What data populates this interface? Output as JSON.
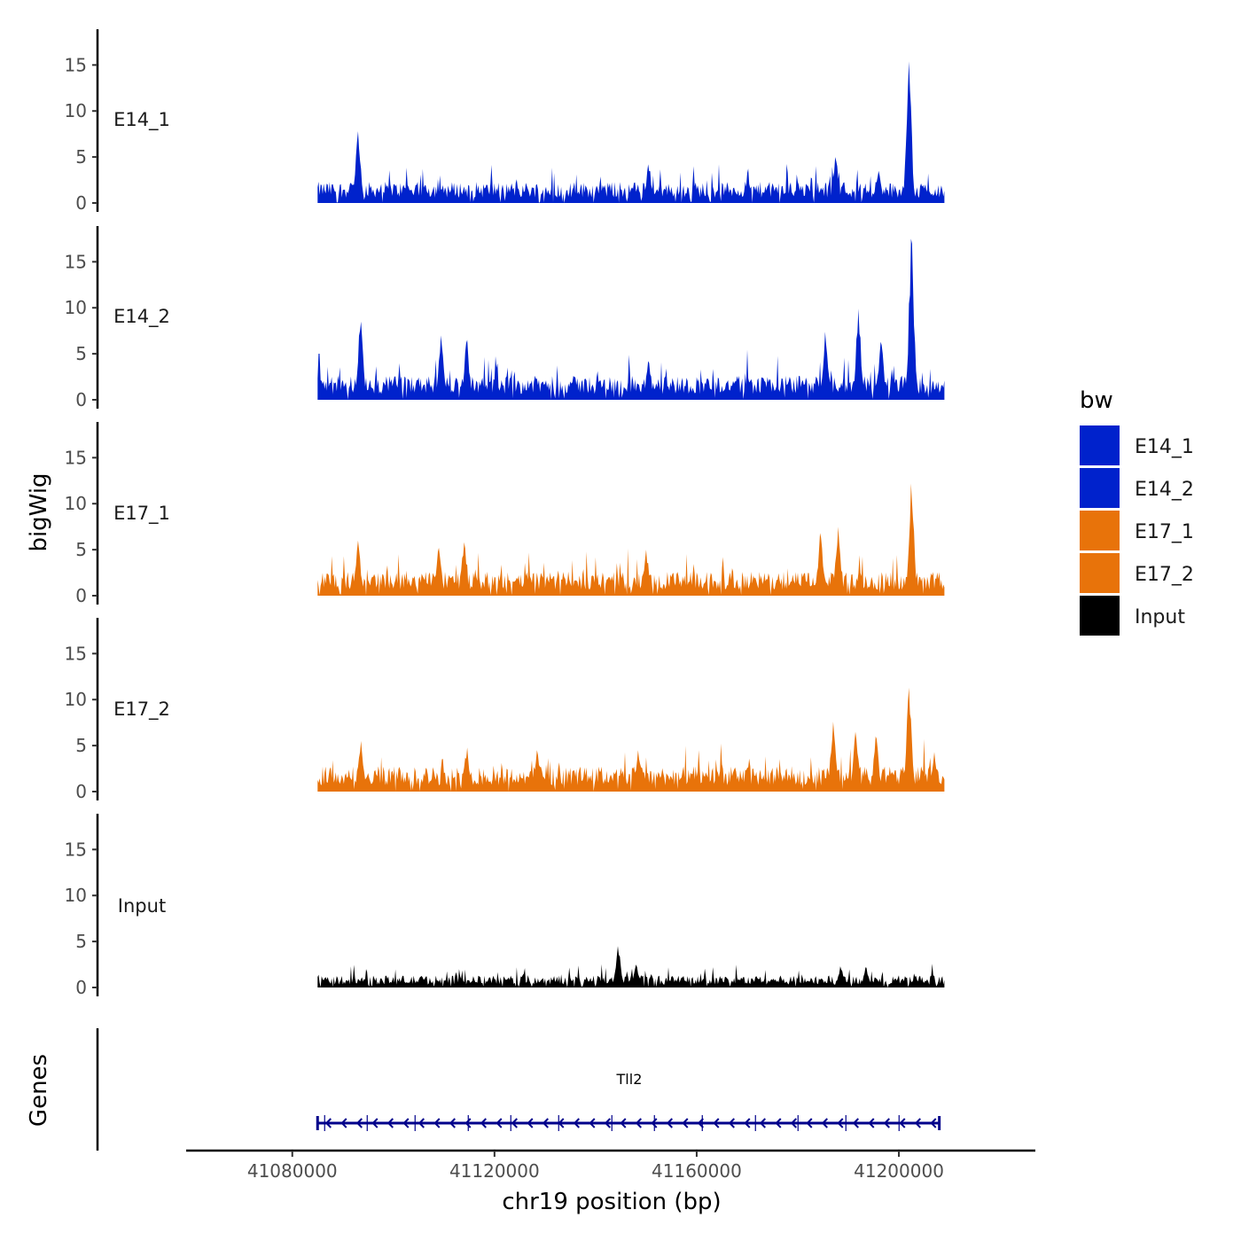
{
  "chart_data": {
    "type": "area",
    "chromosome": "chr19",
    "xlabel": "chr19 position (bp)",
    "ylabel": "bigWig",
    "genes_label": "Genes",
    "xlim": [
      41059000,
      41227000
    ],
    "xticks": [
      "41080000",
      "41120000",
      "41160000",
      "41200000"
    ],
    "region": [
      41085000,
      41209000
    ],
    "ylim": [
      0,
      18.5
    ],
    "yticks": [
      "0",
      "5",
      "10",
      "15"
    ],
    "legend": {
      "title": "bw",
      "placement": "right",
      "items": [
        {
          "label": "E14_1",
          "color": "#0022cc"
        },
        {
          "label": "E14_2",
          "color": "#0022cc"
        },
        {
          "label": "E17_1",
          "color": "#e8730a"
        },
        {
          "label": "E17_2",
          "color": "#e8730a"
        },
        {
          "label": "Input",
          "color": "#000000"
        }
      ]
    },
    "series": [
      {
        "name": "E14_1",
        "color": "#0022cc",
        "baseline": 1.6,
        "peaks": [
          {
            "pos": 41093000,
            "value": 7.8
          },
          {
            "pos": 41150500,
            "value": 4.2
          },
          {
            "pos": 41187500,
            "value": 5.0
          },
          {
            "pos": 41196000,
            "value": 3.5
          },
          {
            "pos": 41202000,
            "value": 15.4
          }
        ]
      },
      {
        "name": "E14_2",
        "color": "#0022cc",
        "baseline": 1.8,
        "peaks": [
          {
            "pos": 41093500,
            "value": 8.5
          },
          {
            "pos": 41109500,
            "value": 7.0
          },
          {
            "pos": 41114500,
            "value": 6.5
          },
          {
            "pos": 41150500,
            "value": 4.2
          },
          {
            "pos": 41185500,
            "value": 7.4
          },
          {
            "pos": 41192000,
            "value": 9.9
          },
          {
            "pos": 41196500,
            "value": 6.3
          },
          {
            "pos": 41202500,
            "value": 17.5
          }
        ]
      },
      {
        "name": "E17_1",
        "color": "#e8730a",
        "baseline": 1.8,
        "peaks": [
          {
            "pos": 41093000,
            "value": 6.0
          },
          {
            "pos": 41109000,
            "value": 5.2
          },
          {
            "pos": 41114000,
            "value": 5.8
          },
          {
            "pos": 41150000,
            "value": 5.0
          },
          {
            "pos": 41184500,
            "value": 6.8
          },
          {
            "pos": 41188000,
            "value": 7.5
          },
          {
            "pos": 41202500,
            "value": 12.2
          }
        ]
      },
      {
        "name": "E17_2",
        "color": "#e8730a",
        "baseline": 1.9,
        "peaks": [
          {
            "pos": 41093500,
            "value": 5.5
          },
          {
            "pos": 41114500,
            "value": 4.8
          },
          {
            "pos": 41128500,
            "value": 4.5
          },
          {
            "pos": 41148500,
            "value": 4.5
          },
          {
            "pos": 41187000,
            "value": 7.6
          },
          {
            "pos": 41191500,
            "value": 6.5
          },
          {
            "pos": 41195500,
            "value": 6.0
          },
          {
            "pos": 41202000,
            "value": 11.3
          },
          {
            "pos": 41207000,
            "value": 4.3
          }
        ]
      },
      {
        "name": "Input",
        "color": "#000000",
        "baseline": 0.9,
        "peaks": [
          {
            "pos": 41144500,
            "value": 4.5
          },
          {
            "pos": 41148000,
            "value": 2.5
          },
          {
            "pos": 41188500,
            "value": 2.3
          },
          {
            "pos": 41193500,
            "value": 2.2
          }
        ]
      }
    ],
    "gene": {
      "name": "Tll2",
      "start": 41085000,
      "end": 41208000,
      "strand": "-",
      "color": "#00008b"
    }
  }
}
